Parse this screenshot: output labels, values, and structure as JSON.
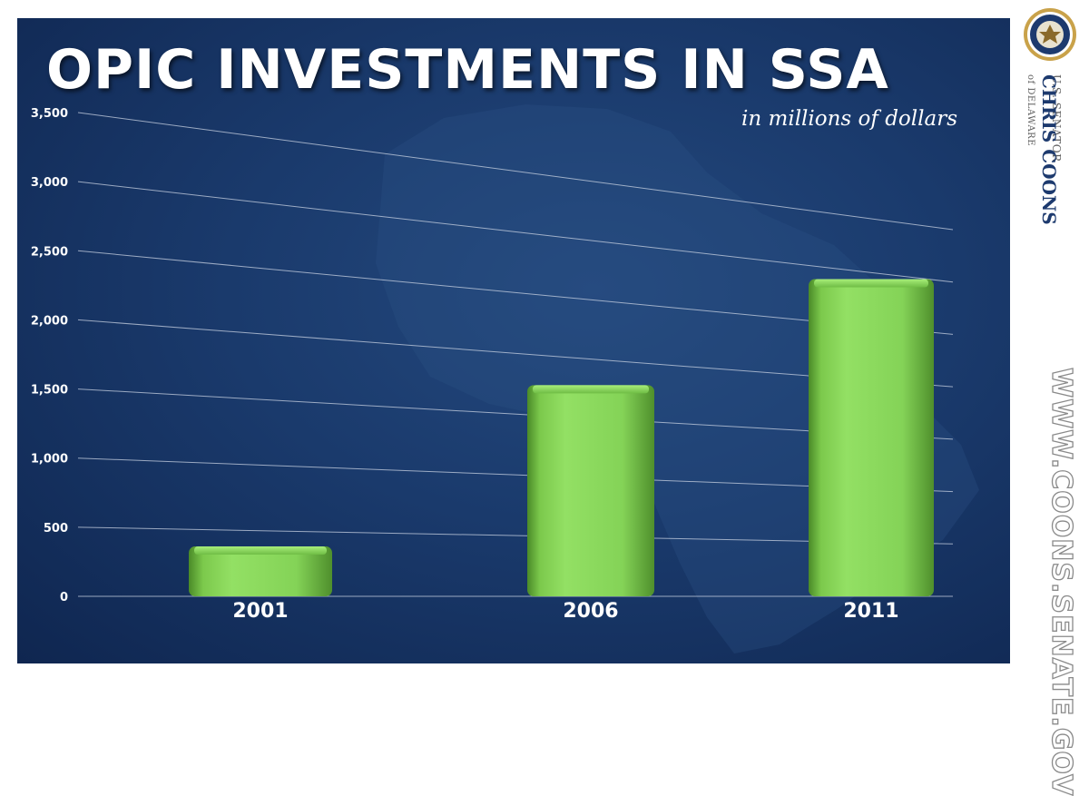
{
  "title": "OPIC INVESTMENTS IN SSA",
  "subtitle": "in millions of dollars",
  "colors": {
    "background": "#1a3a6c",
    "bar": "#8fdb5e",
    "bar_shadow": "#4f8f2c",
    "grid": "#c8d2e2",
    "text": "#ffffff",
    "senator_name": "#1d3a6e"
  },
  "branding": {
    "seal_icon": "us-senate-seal",
    "senator_label": "U.S. SENATOR",
    "senator_name": "CHRIS COONS",
    "senator_state": "of DELAWARE",
    "website": "WWW.COONS.SENATE.GOV"
  },
  "chart_data": {
    "type": "bar",
    "title": "OPIC INVESTMENTS IN SSA",
    "subtitle": "in millions of dollars",
    "xlabel": "",
    "ylabel": "",
    "categories": [
      "2001",
      "2006",
      "2011"
    ],
    "values": [
      380,
      1780,
      2940
    ],
    "ylim": [
      0,
      3500
    ],
    "yticks": [
      0,
      500,
      1000,
      1500,
      2000,
      2500,
      3000,
      3500
    ],
    "ytick_labels": [
      "0",
      "500",
      "1,000",
      "1,500",
      "2,000",
      "2,500",
      "3,000",
      "3,500"
    ],
    "grid": true,
    "legend": "none"
  }
}
